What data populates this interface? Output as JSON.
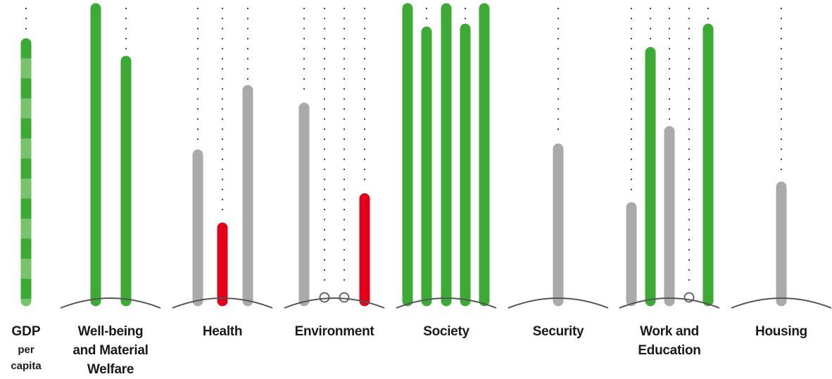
{
  "chart_data": {
    "type": "bar",
    "title": "",
    "xlabel": "",
    "ylabel": "",
    "ylim": [
      0,
      100
    ],
    "grid": false,
    "colors": {
      "improving": "#3daa35",
      "neutral": "#aaaaaa",
      "worsening": "#e2001a",
      "gdp_stripe_light": "#79c36c",
      "gdp_stripe_dark": "#3daa35",
      "bracket": "#555555",
      "guide_dots": "#333333"
    },
    "gdp": {
      "label_lines": [
        "GDP",
        "per",
        "capita"
      ],
      "value": 88,
      "status": "improving"
    },
    "categories": [
      {
        "label_lines": [
          "Well-being",
          "and Material",
          "Welfare"
        ],
        "indicators": [
          {
            "value": 100,
            "status": "improving"
          },
          {
            "value": 82,
            "status": "improving"
          }
        ]
      },
      {
        "label_lines": [
          "Health"
        ],
        "indicators": [
          {
            "value": 50,
            "status": "neutral"
          },
          {
            "value": 25,
            "status": "worsening"
          },
          {
            "value": 72,
            "status": "neutral"
          }
        ]
      },
      {
        "label_lines": [
          "Environment"
        ],
        "indicators": [
          {
            "value": 66,
            "status": "neutral"
          },
          {
            "value": 0,
            "status": "no-data"
          },
          {
            "value": 0,
            "status": "no-data"
          },
          {
            "value": 35,
            "status": "worsening"
          }
        ]
      },
      {
        "label_lines": [
          "Society"
        ],
        "indicators": [
          {
            "value": 100,
            "status": "improving"
          },
          {
            "value": 92,
            "status": "improving"
          },
          {
            "value": 100,
            "status": "improving"
          },
          {
            "value": 93,
            "status": "improving"
          },
          {
            "value": 100,
            "status": "improving"
          }
        ]
      },
      {
        "label_lines": [
          "Security"
        ],
        "indicators": [
          {
            "value": 52,
            "status": "neutral"
          }
        ]
      },
      {
        "label_lines": [
          "Work and",
          "Education"
        ],
        "indicators": [
          {
            "value": 32,
            "status": "neutral"
          },
          {
            "value": 85,
            "status": "improving"
          },
          {
            "value": 58,
            "status": "neutral"
          },
          {
            "value": 0,
            "status": "no-data"
          },
          {
            "value": 93,
            "status": "improving"
          }
        ]
      },
      {
        "label_lines": [
          "Housing"
        ],
        "indicators": [
          {
            "value": 39,
            "status": "neutral"
          }
        ]
      }
    ]
  }
}
